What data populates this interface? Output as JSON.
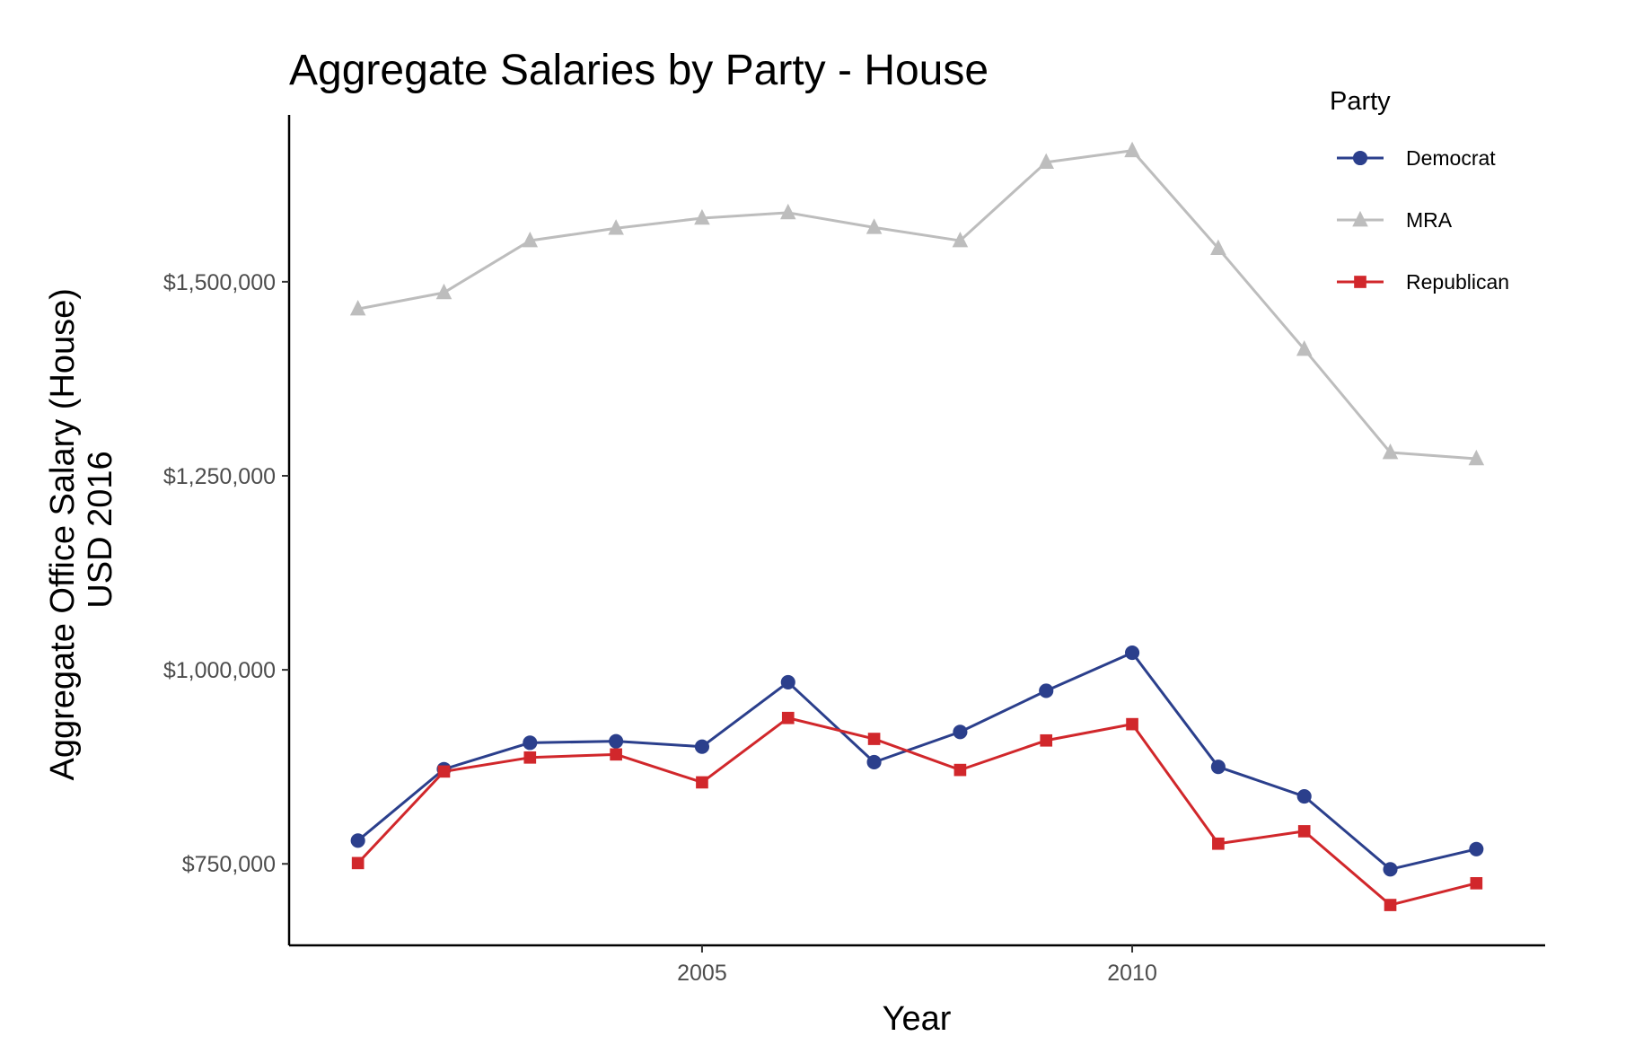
{
  "chart_data": {
    "type": "line",
    "title": "Aggregate Salaries by Party - House",
    "xlabel": "Year",
    "ylabel_lines": [
      "Aggregate Office Salary (House)",
      "USD 2016"
    ],
    "x": [
      2001,
      2002,
      2003,
      2004,
      2005,
      2006,
      2007,
      2008,
      2009,
      2010,
      2011,
      2012,
      2013,
      2014
    ],
    "xlim": [
      2000.2,
      2014.8
    ],
    "ylim": [
      645000,
      1715000
    ],
    "x_ticks": [
      2005,
      2010
    ],
    "x_tick_labels": [
      "2005",
      "2010"
    ],
    "y_ticks": [
      750000,
      1000000,
      1250000,
      1500000
    ],
    "y_tick_labels": [
      "$750,000",
      "$1,000,000",
      "$1,250,000",
      "$1,500,000"
    ],
    "grid": false,
    "legend_title": "Party",
    "legend_position": "top-right",
    "series": [
      {
        "name": "Democrat",
        "color": "#2b3f8c",
        "marker": "circle",
        "values": [
          780000,
          872000,
          906000,
          908000,
          901000,
          984000,
          881000,
          920000,
          973000,
          1022000,
          875000,
          837000,
          743000,
          769000
        ]
      },
      {
        "name": "MRA",
        "color": "#bdbdbd",
        "marker": "triangle",
        "values": [
          1465000,
          1486000,
          1553000,
          1569000,
          1582000,
          1589000,
          1570000,
          1553000,
          1654000,
          1669000,
          1543000,
          1413000,
          1280000,
          1272000
        ]
      },
      {
        "name": "Republican",
        "color": "#d1272b",
        "marker": "square",
        "values": [
          751000,
          869000,
          887000,
          891000,
          855000,
          938000,
          911000,
          871000,
          909000,
          930000,
          776000,
          792000,
          697000,
          725000
        ]
      }
    ]
  }
}
